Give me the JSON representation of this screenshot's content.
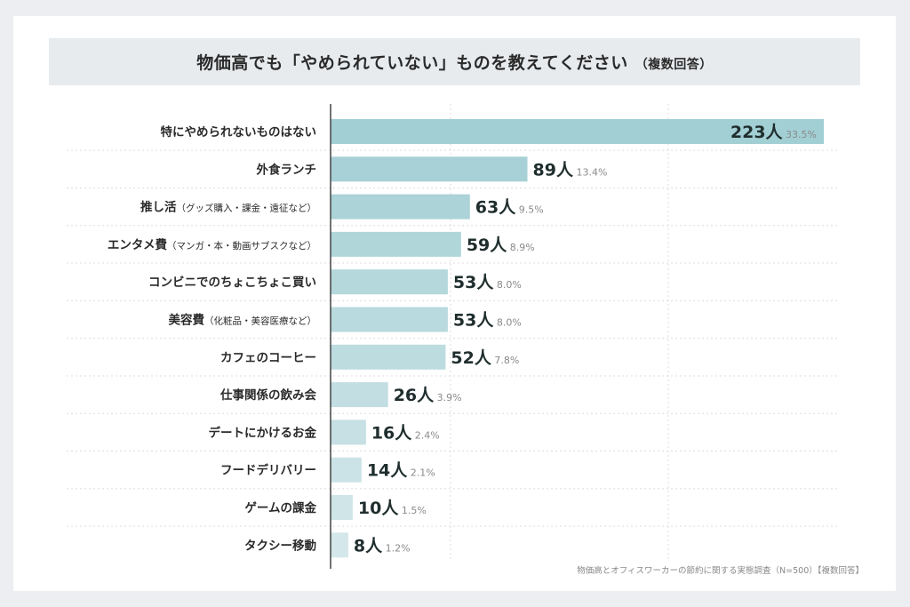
{
  "chart_data": {
    "type": "bar",
    "orientation": "horizontal",
    "title": "物価高でも「やめられていない」ものを教えてください",
    "subtitle": "（複数回答）",
    "categories": [
      {
        "main": "特にやめられないものはない",
        "sub": ""
      },
      {
        "main": "外食ランチ",
        "sub": ""
      },
      {
        "main": "推し活",
        "sub": "（グッズ購入・課金・遠征など）"
      },
      {
        "main": "エンタメ費",
        "sub": "（マンガ・本・動画サブスクなど）"
      },
      {
        "main": "コンビニでのちょこちょこ買い",
        "sub": ""
      },
      {
        "main": "美容費",
        "sub": "（化粧品・美容医療など）"
      },
      {
        "main": "カフェのコーヒー",
        "sub": ""
      },
      {
        "main": "仕事関係の飲み会",
        "sub": ""
      },
      {
        "main": "デートにかけるお金",
        "sub": ""
      },
      {
        "main": "フードデリバリー",
        "sub": ""
      },
      {
        "main": "ゲームの課金",
        "sub": ""
      },
      {
        "main": "タクシー移動",
        "sub": ""
      }
    ],
    "values": [
      223,
      89,
      63,
      59,
      53,
      53,
      52,
      26,
      16,
      14,
      10,
      8
    ],
    "value_unit": "人",
    "percent_labels": [
      "33.5%",
      "13.4%",
      "9.5%",
      "8.9%",
      "8.0%",
      "8.0%",
      "7.8%",
      "3.9%",
      "2.4%",
      "2.1%",
      "1.5%",
      "1.2%"
    ],
    "xlim": [
      0,
      230
    ],
    "grid": "vertical dotted",
    "colors": {
      "bar_dark": "#a2cfd4",
      "bar_light": "#d4e7ea",
      "value_text": "#1f2d2d",
      "percent_text": "#8a8a8a"
    }
  },
  "footer": "物価高とオフィスワーカーの節約に関する実態調査（N=500）【複数回答】"
}
